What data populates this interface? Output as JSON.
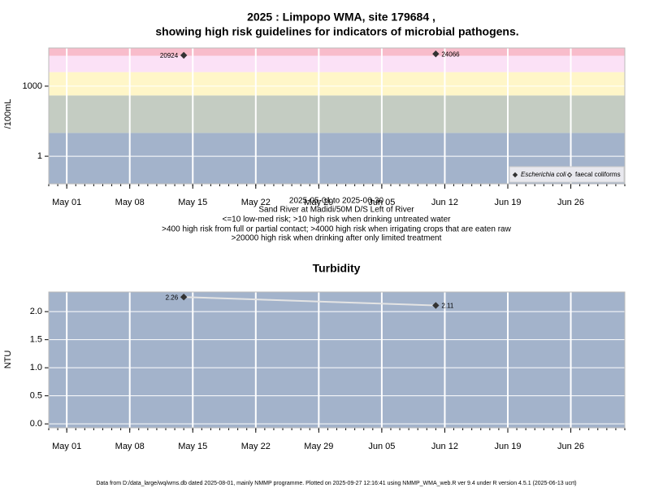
{
  "chart_data": [
    {
      "type": "scatter",
      "title": [
        "2025 : Limpopo WMA, site 179684 ,",
        "showing high risk guidelines for indicators of microbial pathogens."
      ],
      "y_label": "/100mL",
      "notes": [
        "2025-05-01 to 2025-06-30",
        "Sand River at Madidi/50M D/S Left of River",
        "<=10 low-med risk; >10 high risk when drinking untreated water",
        ">400 high risk from full or partial contact; >4000 high risk when irrigating crops that are eaten raw",
        ">20000 high risk when drinking after only limited treatment"
      ],
      "x": [
        "2025-05-14",
        "2025-06-11"
      ],
      "series": [
        {
          "name": "Escherichia coli",
          "color": "#333333",
          "marker": "filled-diamond",
          "values": [
            20924,
            24066
          ]
        },
        {
          "name": "faecal coliforms",
          "color": "#333333",
          "marker": "open-diamond",
          "values": [
            null,
            null
          ]
        }
      ],
      "log_scale": true,
      "ylim": [
        0.066,
        43000
      ],
      "yticks": [
        1,
        1000
      ],
      "thresholds": [
        10,
        400,
        4000,
        20000
      ],
      "band_colors": [
        "#a3b3cb",
        "#c4ccc2",
        "#fff6c8",
        "#fbe1f6",
        "#f8bccb"
      ],
      "xlim": [
        "2025-04-29",
        "2025-07-02"
      ],
      "xticks": [
        {
          "value": "2025-05-01",
          "label": "May 01"
        },
        {
          "value": "2025-05-08",
          "label": "May 08"
        },
        {
          "value": "2025-05-15",
          "label": "May 15"
        },
        {
          "value": "2025-05-22",
          "label": "May 22"
        },
        {
          "value": "2025-05-29",
          "label": "May 29"
        },
        {
          "value": "2025-06-05",
          "label": "Jun 05"
        },
        {
          "value": "2025-06-12",
          "label": "Jun 12"
        },
        {
          "value": "2025-06-19",
          "label": "Jun 19"
        },
        {
          "value": "2025-06-26",
          "label": "Jun 26"
        }
      ],
      "grid": true,
      "legend": "bottom-right"
    },
    {
      "type": "line",
      "title": "Turbidity",
      "y_label": "NTU",
      "x": [
        "2025-05-14",
        "2025-06-11"
      ],
      "series": [
        {
          "name": "Turbidity",
          "color": "#333333",
          "line_color": "#e4e4e4",
          "values": [
            2.26,
            2.11
          ]
        }
      ],
      "background": "#a3b3cb",
      "ylim": [
        -0.07,
        2.35
      ],
      "yticks": [
        {
          "value": 0,
          "label": "0.0"
        },
        {
          "value": 0.5,
          "label": "0.5"
        },
        {
          "value": 1,
          "label": "1.0"
        },
        {
          "value": 1.5,
          "label": "1.5"
        },
        {
          "value": 2,
          "label": "2.0"
        }
      ],
      "xlim": [
        "2025-04-29",
        "2025-07-02"
      ],
      "xticks": [
        {
          "value": "2025-05-01",
          "label": "May 01"
        },
        {
          "value": "2025-05-08",
          "label": "May 08"
        },
        {
          "value": "2025-05-15",
          "label": "May 15"
        },
        {
          "value": "2025-05-22",
          "label": "May 22"
        },
        {
          "value": "2025-05-29",
          "label": "May 29"
        },
        {
          "value": "2025-06-05",
          "label": "Jun 05"
        },
        {
          "value": "2025-06-12",
          "label": "Jun 12"
        },
        {
          "value": "2025-06-19",
          "label": "Jun 19"
        },
        {
          "value": "2025-06-26",
          "label": "Jun 26"
        }
      ],
      "grid": true
    }
  ],
  "footer": "Data from D:/data_large/wq/wms.db dated 2025-08-01, mainly NMMP programme. Plotted on 2025-09-27 12:16:41 using NMMP_WMA_web.R ver 9.4 under R version 4.5.1 (2025-06-13 ucrt)"
}
